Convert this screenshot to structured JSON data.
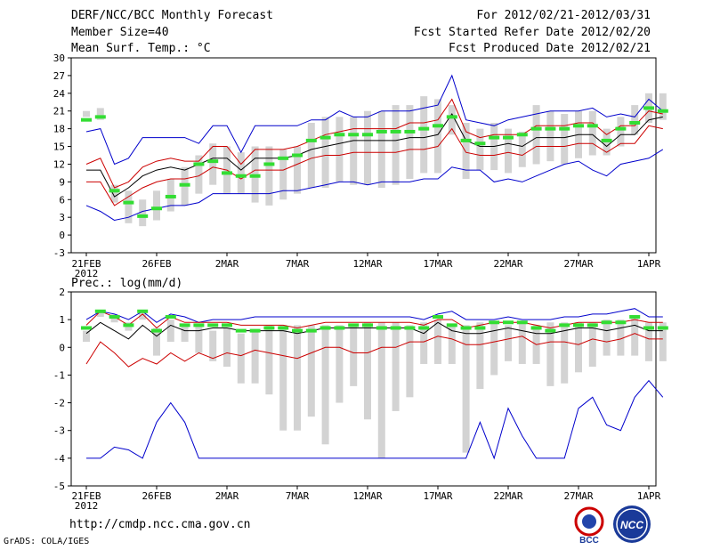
{
  "header": {
    "title": "DERF/NCC/BCC Monthly Forecast",
    "member_size": "Member Size=40",
    "variable_top": "Mean Surf. Temp.: °C",
    "period": "For 2012/02/21-2012/03/31",
    "started": "Fcst Started Refer Date 2012/02/20",
    "produced": "Fcst Produced Date 2012/02/21"
  },
  "footer": {
    "url": "http://cmdp.ncc.cma.gov.cn",
    "credit": "GrADS: COLA/IGES",
    "logo_left": "BCC",
    "logo_right": "NCC"
  },
  "colors": {
    "box": "#d3d3d3",
    "mean": "#000000",
    "std": "#cc0000",
    "range": "#0000cc",
    "obs": "#33dd33"
  },
  "chart_data": [
    {
      "type": "line",
      "title": "Mean Surf. Temp.: °C",
      "x_tick_labels": [
        "21FEB",
        "26FEB",
        "2MAR",
        "7MAR",
        "12MAR",
        "17MAR",
        "22MAR",
        "27MAR",
        "1APR"
      ],
      "x_year_label": "2012",
      "ylim": [
        -3,
        30
      ],
      "yticks": [
        -3,
        0,
        3,
        6,
        9,
        12,
        15,
        18,
        21,
        24,
        27,
        30
      ],
      "series": [
        {
          "name": "max",
          "values": [
            17.5,
            18,
            12,
            13,
            16.5,
            16.5,
            16.5,
            16.5,
            15.5,
            18.5,
            18.5,
            14,
            18.5,
            18.5,
            18.5,
            18.5,
            19.5,
            19.5,
            21,
            20,
            20,
            21,
            21,
            21,
            21.5,
            22,
            27,
            19.5,
            19,
            18.5,
            19.5,
            20,
            20.5,
            21,
            21,
            21,
            21.5,
            20,
            20.5,
            20,
            23,
            21
          ]
        },
        {
          "name": "std_upper",
          "values": [
            12,
            13,
            8,
            9,
            11.5,
            12.5,
            13,
            12.5,
            12.5,
            15,
            15,
            12,
            14.5,
            14.5,
            14.5,
            15,
            16,
            17,
            17.5,
            18,
            18,
            18,
            18,
            19,
            19,
            19.5,
            23,
            17.5,
            16.5,
            17,
            17,
            17,
            18.5,
            18.5,
            18.5,
            19,
            19,
            17,
            18.5,
            18.5,
            21,
            20.5
          ]
        },
        {
          "name": "mean",
          "values": [
            11,
            11,
            6.5,
            8,
            10,
            11,
            11.5,
            11,
            12,
            13,
            13,
            11,
            13,
            13,
            13,
            13.5,
            14.5,
            15,
            15.5,
            16,
            16,
            16,
            16,
            16.5,
            16.5,
            17,
            20.5,
            16,
            15,
            15,
            15.5,
            15,
            16.5,
            16.5,
            16.5,
            17,
            17,
            15,
            17,
            17,
            19.5,
            20
          ]
        },
        {
          "name": "std_lower",
          "values": [
            9,
            9,
            5,
            6.5,
            8,
            9,
            9.5,
            9.5,
            10,
            11.5,
            11,
            9.5,
            11,
            11,
            11,
            12,
            13,
            13.5,
            13.5,
            14,
            14,
            14,
            14,
            14.5,
            14.5,
            15,
            18,
            14,
            13.5,
            13.5,
            14,
            13.5,
            15,
            15,
            15,
            15.5,
            15.5,
            14,
            15.5,
            15.5,
            18.5,
            18
          ]
        },
        {
          "name": "min",
          "values": [
            5,
            4,
            2.5,
            3,
            4,
            4.5,
            5,
            5,
            5.5,
            7,
            7,
            7,
            7,
            7,
            7.5,
            7.5,
            8,
            8.5,
            9,
            9,
            8.5,
            9,
            9,
            9,
            9.5,
            9.5,
            11.5,
            11,
            11,
            9,
            9.5,
            9,
            10,
            11,
            12,
            12.5,
            11,
            10,
            12,
            12.5,
            13,
            14.5
          ]
        },
        {
          "name": "observed",
          "values": [
            19.5,
            20,
            7.5,
            5.5,
            3.2,
            4.5,
            6.5,
            8.5,
            12,
            12.5,
            10.5,
            10,
            10,
            12,
            13,
            13.5,
            16,
            16.5,
            17,
            17,
            17,
            17.5,
            17.5,
            17.5,
            18,
            18.5,
            20,
            16,
            15.5,
            16.5,
            16.5,
            17,
            18,
            18,
            18,
            18.5,
            18.5,
            16,
            18,
            19,
            21.5,
            21
          ]
        }
      ],
      "boxes": [
        [
          20,
          21
        ],
        [
          19.5,
          21.5
        ],
        [
          5.5,
          8.5
        ],
        [
          2,
          7.5
        ],
        [
          1.5,
          6
        ],
        [
          2.5,
          7.5
        ],
        [
          4,
          9.5
        ],
        [
          5,
          11.5
        ],
        [
          7,
          13.5
        ],
        [
          8.5,
          15.5
        ],
        [
          7,
          15
        ],
        [
          7,
          14
        ],
        [
          5.5,
          15
        ],
        [
          5,
          15
        ],
        [
          6,
          14.5
        ],
        [
          7,
          15
        ],
        [
          8,
          19
        ],
        [
          8,
          20
        ],
        [
          9,
          20
        ],
        [
          8.5,
          20
        ],
        [
          8.5,
          21
        ],
        [
          8,
          21
        ],
        [
          8.5,
          22
        ],
        [
          9.5,
          22
        ],
        [
          10.5,
          23.5
        ],
        [
          10.5,
          23
        ],
        [
          17,
          22
        ],
        [
          9.5,
          19
        ],
        [
          11,
          18
        ],
        [
          11,
          19
        ],
        [
          10.5,
          18
        ],
        [
          11.5,
          17.5
        ],
        [
          12,
          22
        ],
        [
          12.5,
          21
        ],
        [
          12,
          20.5
        ],
        [
          13,
          21
        ],
        [
          13.5,
          21
        ],
        [
          13.5,
          18
        ],
        [
          15,
          20
        ],
        [
          17,
          22
        ],
        [
          19,
          24
        ],
        [
          19.5,
          24
        ]
      ]
    },
    {
      "type": "line",
      "title": "Prec.: log(mm/d)",
      "x_tick_labels": [
        "21FEB",
        "26FEB",
        "2MAR",
        "7MAR",
        "12MAR",
        "17MAR",
        "22MAR",
        "27MAR",
        "1APR"
      ],
      "x_year_label": "2012",
      "ylim": [
        -5,
        2
      ],
      "yticks": [
        -5,
        -4,
        -3,
        -2,
        -1,
        0,
        1,
        2
      ],
      "series": [
        {
          "name": "max",
          "values": [
            1,
            1.3,
            1.2,
            1,
            1.3,
            0.9,
            1.2,
            1.1,
            0.9,
            1,
            1,
            1,
            1.1,
            1.1,
            1.1,
            1.1,
            1.1,
            1.1,
            1.1,
            1.1,
            1.1,
            1.1,
            1.1,
            1.1,
            1,
            1.2,
            1.3,
            1,
            1,
            1,
            1.1,
            1,
            1,
            1,
            1.1,
            1.1,
            1.2,
            1.2,
            1.3,
            1.4,
            1.1,
            1.1
          ]
        },
        {
          "name": "std_upper",
          "values": [
            0.8,
            1.3,
            1.1,
            0.8,
            1.2,
            0.7,
            1.1,
            0.9,
            0.9,
            0.9,
            0.9,
            0.8,
            0.8,
            0.8,
            0.8,
            0.7,
            0.8,
            0.9,
            0.9,
            0.9,
            0.9,
            0.9,
            0.9,
            0.9,
            0.8,
            1,
            1,
            0.7,
            0.8,
            0.9,
            0.9,
            0.9,
            0.8,
            0.7,
            0.8,
            0.9,
            0.9,
            0.9,
            0.9,
            1,
            0.9,
            0.9
          ]
        },
        {
          "name": "mean",
          "values": [
            0.5,
            0.9,
            0.6,
            0.3,
            0.8,
            0.4,
            0.8,
            0.6,
            0.6,
            0.7,
            0.7,
            0.6,
            0.6,
            0.6,
            0.6,
            0.5,
            0.6,
            0.7,
            0.7,
            0.7,
            0.7,
            0.7,
            0.7,
            0.7,
            0.5,
            0.9,
            0.6,
            0.5,
            0.5,
            0.6,
            0.7,
            0.6,
            0.5,
            0.5,
            0.6,
            0.7,
            0.7,
            0.6,
            0.7,
            0.8,
            0.6,
            0.6
          ]
        },
        {
          "name": "std_lower",
          "values": [
            -0.6,
            0.2,
            -0.2,
            -0.7,
            -0.4,
            -0.6,
            -0.2,
            -0.5,
            -0.2,
            -0.4,
            -0.2,
            -0.3,
            -0.1,
            -0.2,
            -0.3,
            -0.4,
            -0.2,
            0,
            0,
            -0.2,
            -0.2,
            0,
            0,
            0.2,
            0.2,
            0.4,
            0.3,
            0.1,
            0.1,
            0.2,
            0.3,
            0.4,
            0.1,
            0.2,
            0.2,
            0.1,
            0.3,
            0.2,
            0.3,
            0.5,
            0.3,
            0.3
          ]
        },
        {
          "name": "min",
          "values": [
            -4,
            -4,
            -3.6,
            -3.7,
            -4,
            -2.7,
            -2,
            -2.7,
            -4,
            -4,
            -4,
            -4,
            -4,
            -4,
            -4,
            -4,
            -4,
            -4,
            -4,
            -4,
            -4,
            -4,
            -4,
            -4,
            -4,
            -4,
            -4,
            -4,
            -2.7,
            -4,
            -2.2,
            -3.2,
            -4,
            -4,
            -4,
            -2.2,
            -1.8,
            -2.8,
            -3,
            -1.8,
            -1.2,
            -1.8
          ]
        },
        {
          "name": "observed",
          "values": [
            0.7,
            1.3,
            1.1,
            0.8,
            1.3,
            0.6,
            1.1,
            0.8,
            0.8,
            0.8,
            0.8,
            0.6,
            0.6,
            0.7,
            0.7,
            0.6,
            0.6,
            0.7,
            0.7,
            0.8,
            0.8,
            0.7,
            0.7,
            0.7,
            0.7,
            1.1,
            0.8,
            0.7,
            0.7,
            0.9,
            0.9,
            0.9,
            0.7,
            0.6,
            0.8,
            0.8,
            0.8,
            0.9,
            0.9,
            1.1,
            0.7,
            0.7
          ]
        }
      ],
      "boxes": [
        [
          0.2,
          0.6
        ],
        [
          1.1,
          1.3
        ],
        [
          0.9,
          1.2
        ],
        [
          0.6,
          0.9
        ],
        [
          1,
          1.3
        ],
        [
          -0.3,
          0.7
        ],
        [
          0.2,
          1
        ],
        [
          0.2,
          0.8
        ],
        [
          -0.2,
          0.8
        ],
        [
          -0.5,
          0.6
        ],
        [
          -0.7,
          0.7
        ],
        [
          -1.3,
          0.5
        ],
        [
          -1.3,
          0.6
        ],
        [
          -1.7,
          0.8
        ],
        [
          -3,
          0.8
        ],
        [
          -3,
          0.8
        ],
        [
          -2.5,
          0.8
        ],
        [
          -3.5,
          0.8
        ],
        [
          -2,
          0.8
        ],
        [
          -1.4,
          0.8
        ],
        [
          -2.6,
          0.9
        ],
        [
          -4,
          0.9
        ],
        [
          -2.3,
          0.9
        ],
        [
          -1.8,
          0.8
        ],
        [
          -0.6,
          0.9
        ],
        [
          -0.6,
          1
        ],
        [
          -0.6,
          0.8
        ],
        [
          -3.8,
          0.8
        ],
        [
          -1.5,
          0.9
        ],
        [
          -1,
          0.9
        ],
        [
          -0.5,
          0.8
        ],
        [
          -0.6,
          0.9
        ],
        [
          -0.6,
          0.8
        ],
        [
          -1.4,
          0.9
        ],
        [
          -1.3,
          0.9
        ],
        [
          -0.9,
          0.9
        ],
        [
          -0.7,
          0.9
        ],
        [
          -0.3,
          1
        ],
        [
          -0.3,
          1
        ],
        [
          -0.3,
          1.1
        ],
        [
          -0.5,
          0.9
        ],
        [
          -0.5,
          0.9
        ]
      ]
    }
  ]
}
